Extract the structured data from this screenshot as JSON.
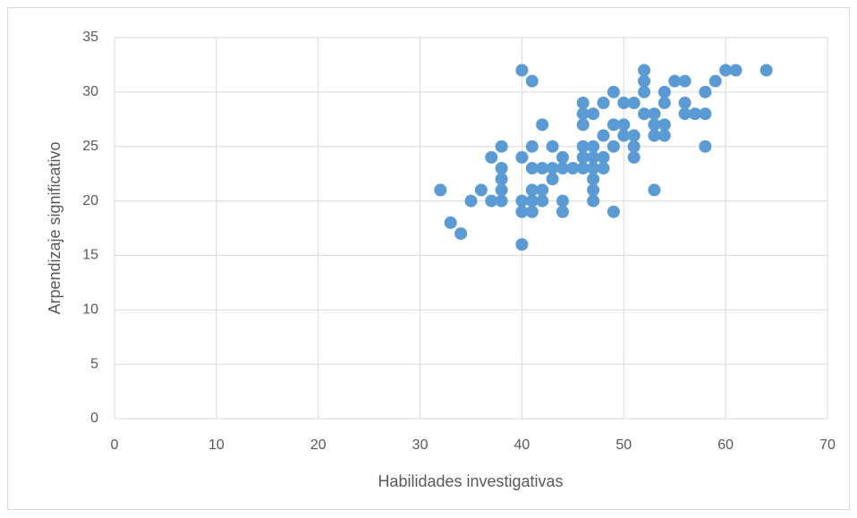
{
  "chart_data": {
    "type": "scatter",
    "xlabel": "Habilidades investigativas",
    "ylabel": "Arpendizaje significativo",
    "x": [
      32,
      33,
      34,
      35,
      36,
      37,
      37,
      38,
      38,
      38,
      38,
      38,
      40,
      40,
      40,
      40,
      40,
      41,
      41,
      41,
      41,
      41,
      41,
      42,
      42,
      42,
      42,
      43,
      43,
      43,
      44,
      44,
      44,
      44,
      45,
      46,
      46,
      46,
      46,
      46,
      46,
      47,
      47,
      47,
      47,
      47,
      47,
      47,
      48,
      48,
      48,
      48,
      49,
      49,
      49,
      49,
      50,
      50,
      50,
      51,
      51,
      51,
      51,
      52,
      52,
      52,
      52,
      53,
      53,
      53,
      53,
      54,
      54,
      54,
      54,
      55,
      56,
      56,
      56,
      57,
      58,
      58,
      58,
      59,
      60,
      61,
      64
    ],
    "values": [
      21,
      18,
      17,
      20,
      21,
      24,
      20,
      25,
      23,
      22,
      21,
      20,
      32,
      24,
      20,
      19,
      16,
      31,
      25,
      23,
      21,
      20,
      19,
      27,
      23,
      21,
      20,
      25,
      23,
      22,
      24,
      23,
      20,
      19,
      23,
      29,
      28,
      27,
      25,
      24,
      23,
      28,
      25,
      24,
      23,
      22,
      21,
      20,
      29,
      26,
      24,
      23,
      30,
      27,
      25,
      19,
      29,
      27,
      26,
      29,
      26,
      25,
      24,
      32,
      31,
      30,
      28,
      28,
      27,
      26,
      21,
      30,
      29,
      27,
      26,
      31,
      31,
      29,
      28,
      28,
      30,
      28,
      25,
      31,
      32,
      32,
      32
    ],
    "color": "#5b9bd5",
    "xlim": [
      0,
      70
    ],
    "xticks": [
      0,
      10,
      20,
      30,
      40,
      50,
      60,
      70
    ],
    "ylim": [
      0,
      35
    ],
    "yticks": [
      0,
      5,
      10,
      15,
      20,
      25,
      30,
      35
    ],
    "grid": true
  }
}
